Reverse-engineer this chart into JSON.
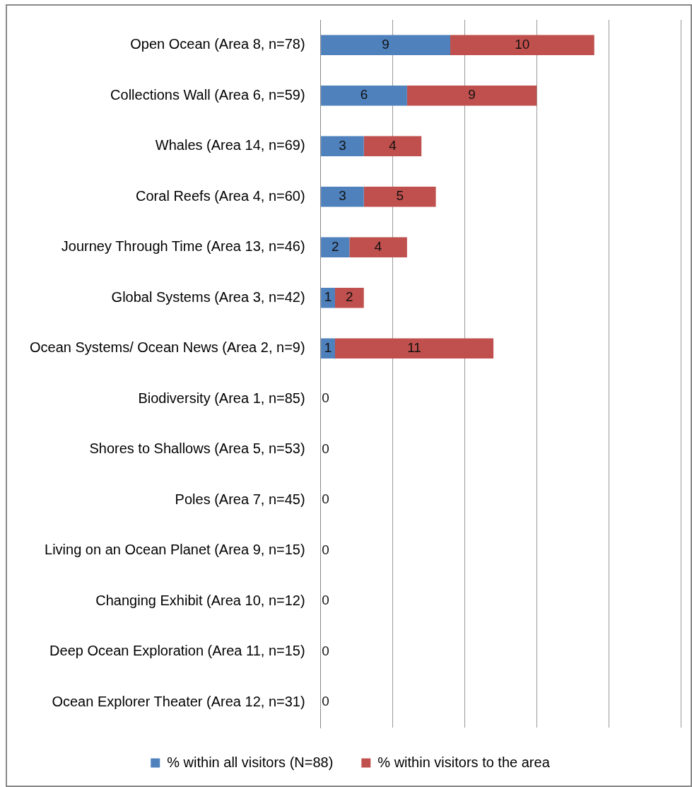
{
  "chart_data": {
    "type": "bar",
    "orientation": "horizontal",
    "stacked": true,
    "categories": [
      "Open Ocean (Area 8, n=78)",
      "Collections Wall (Area 6, n=59)",
      "Whales (Area 14, n=69)",
      "Coral Reefs (Area 4, n=60)",
      "Journey Through Time (Area 13, n=46)",
      "Global Systems (Area 3, n=42)",
      "Ocean Systems/ Ocean News (Area 2, n=9)",
      "Biodiversity (Area 1, n=85)",
      "Shores to Shallows (Area 5, n=53)",
      "Poles (Area 7, n=45)",
      "Living on an Ocean Planet (Area 9, n=15)",
      "Changing Exhibit (Area 10, n=12)",
      "Deep Ocean Exploration (Area 11, n=15)",
      "Ocean Explorer Theater (Area 12, n=31)"
    ],
    "series": [
      {
        "name": "% within all visitors (N=88)",
        "color": "#4f81bd",
        "values": [
          9,
          6,
          3,
          3,
          2,
          1,
          1,
          0,
          0,
          0,
          0,
          0,
          0,
          0
        ],
        "value_labels": [
          "9",
          "6",
          "3",
          "3",
          "2",
          "1",
          "1",
          "0",
          "0",
          "0",
          "0",
          "0",
          "0",
          "0"
        ]
      },
      {
        "name": "% within visitors to the area",
        "color": "#c0504d",
        "values": [
          10,
          9,
          4,
          5,
          4,
          2,
          11,
          0,
          0,
          0,
          0,
          0,
          0,
          0
        ],
        "value_labels": [
          "10",
          "9",
          "4",
          "5",
          "4",
          "2",
          "11",
          null,
          null,
          null,
          null,
          null,
          null,
          null
        ]
      }
    ],
    "xlim": [
      0,
      25
    ],
    "xticks": [
      {
        "value": 0,
        "label": null
      },
      {
        "value": 5,
        "label": null
      },
      {
        "value": 10,
        "label": null
      },
      {
        "value": 15,
        "label": null
      },
      {
        "value": 20,
        "label": null
      },
      {
        "value": 25,
        "label": null
      }
    ],
    "grid": "x",
    "legend": "bottom",
    "tick_labels": "y"
  }
}
